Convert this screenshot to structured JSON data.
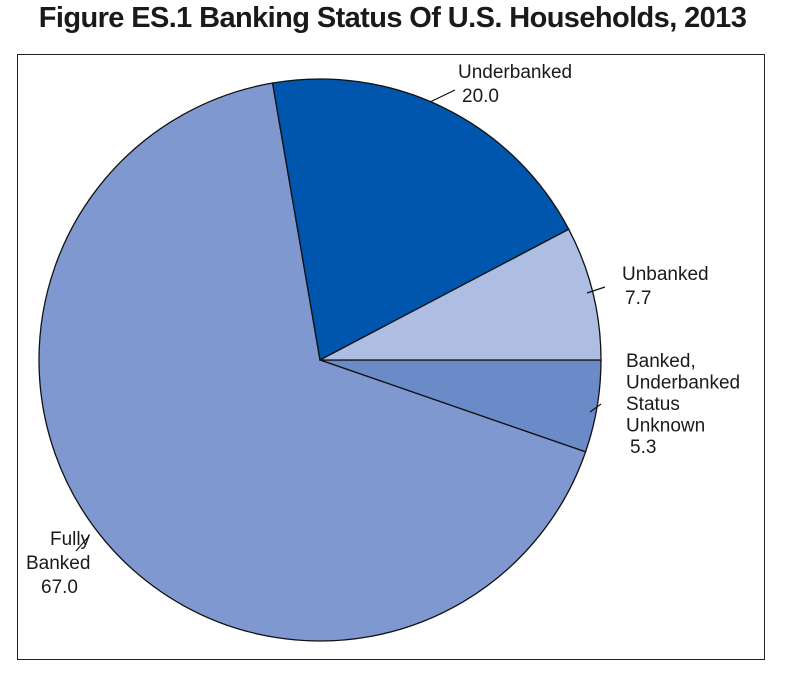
{
  "title": "Figure ES.1  Banking Status Of U.S. Households, 2013",
  "chart_data": {
    "type": "pie",
    "title": "Figure ES.1  Banking Status Of U.S. Households, 2013",
    "slices": [
      {
        "name": "Banked, Underbanked Status Unknown",
        "label_lines": [
          "Banked,",
          "Underbanked",
          "Status",
          "Unknown"
        ],
        "value": 5.3,
        "value_label": "5.3",
        "color": "#6a8ac8"
      },
      {
        "name": "Fully Banked",
        "label_lines": [
          "Fully",
          "Banked"
        ],
        "value": 67.0,
        "value_label": "67.0",
        "color": "#7f99d0"
      },
      {
        "name": "Underbanked",
        "label_lines": [
          "Underbanked"
        ],
        "value": 20.0,
        "value_label": "20.0",
        "color": "#0055ac"
      },
      {
        "name": "Unbanked",
        "label_lines": [
          "Unbanked"
        ],
        "value": 7.7,
        "value_label": "7.7",
        "color": "#aebde2"
      }
    ],
    "start_angle": "3 o'clock",
    "direction": "clockwise",
    "legend": "none"
  }
}
